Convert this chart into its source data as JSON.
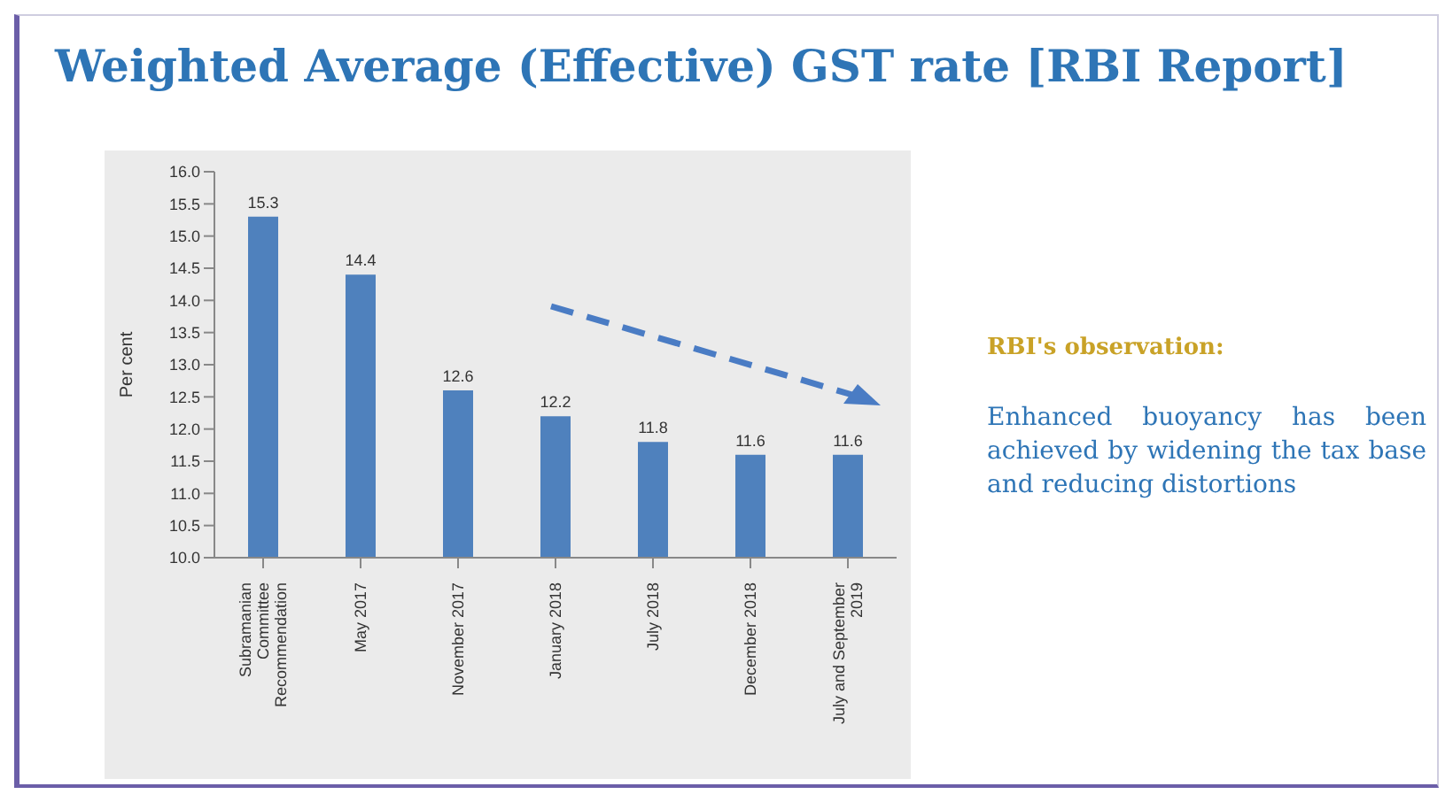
{
  "chart_data": {
    "type": "bar",
    "title": "Weighted Average (Effective) GST rate [RBI Report]",
    "ylabel": "Per cent",
    "categories": [
      "Subramanian Committee Recommendation",
      "May 2017",
      "November 2017",
      "January 2018",
      "July 2018",
      "December 2018",
      "July and September 2019"
    ],
    "values": [
      15.3,
      14.4,
      12.6,
      12.2,
      11.8,
      11.6,
      11.6
    ],
    "color": "#4f81bd",
    "data_labels": true,
    "ylim": [
      10,
      16
    ],
    "yticks": [
      {
        "value": 10,
        "label": "10.0"
      },
      {
        "value": 10.5,
        "label": "10.5"
      },
      {
        "value": 11,
        "label": "11.0"
      },
      {
        "value": 11.5,
        "label": "11.5"
      },
      {
        "value": 12,
        "label": "12.0"
      },
      {
        "value": 12.5,
        "label": "12.5"
      },
      {
        "value": 13,
        "label": "13.0"
      },
      {
        "value": 13.5,
        "label": "13.5"
      },
      {
        "value": 14,
        "label": "14.0"
      },
      {
        "value": 14.5,
        "label": "14.5"
      },
      {
        "value": 15,
        "label": "15.0"
      },
      {
        "value": 15.5,
        "label": "15.5"
      },
      {
        "value": 16,
        "label": "16.0"
      }
    ],
    "grid": false,
    "legend": false,
    "annotations": [
      "RBI's observation:",
      "Enhanced buoyancy has been achieved by widening the tax base and reducing distortions"
    ]
  }
}
